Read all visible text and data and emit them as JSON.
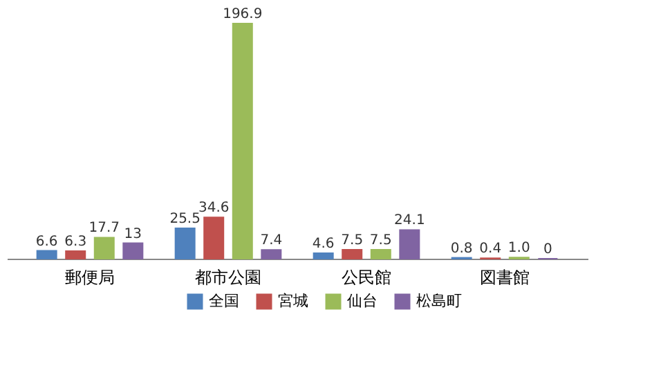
{
  "chart_data": {
    "type": "bar",
    "categories": [
      "郵便局",
      "都市公園",
      "公民館",
      "図書館"
    ],
    "series": [
      {
        "name": "全国",
        "color": "#4f81bd",
        "values": [
          6.6,
          25.5,
          4.6,
          0.8
        ],
        "value_labels": [
          "6.6",
          "25.5",
          "4.6",
          "0.8"
        ]
      },
      {
        "name": "宮城",
        "color": "#c0504d",
        "values": [
          6.3,
          34.6,
          7.5,
          0.4
        ],
        "value_labels": [
          "6.3",
          "34.6",
          "7.5",
          "0.4"
        ]
      },
      {
        "name": "仙台",
        "color": "#9bbb59",
        "values": [
          17.7,
          196.9,
          7.5,
          1.0
        ],
        "value_labels": [
          "17.7",
          "196.9",
          "7.5",
          "1.0"
        ]
      },
      {
        "name": "松島町",
        "color": "#8064a2",
        "values": [
          13,
          7.4,
          24.1,
          0
        ],
        "value_labels": [
          "13",
          "7.4",
          "24.1",
          "0"
        ]
      }
    ],
    "legend": "bottom",
    "grid": false
  }
}
